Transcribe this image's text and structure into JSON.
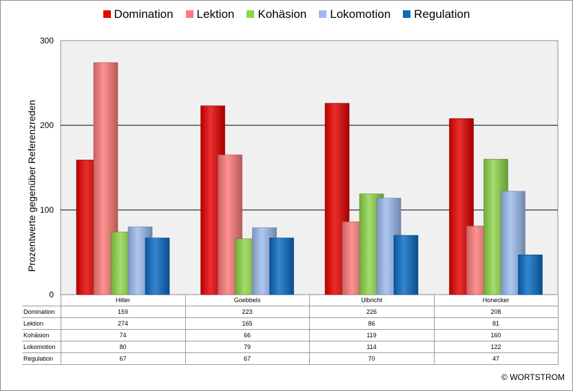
{
  "legend_order": [
    "Domination",
    "Lektion",
    "Kohäsion",
    "Lokomotion",
    "Regulation"
  ],
  "copyright": "© WORTSTROM",
  "chart_data": {
    "type": "bar",
    "ylabel": "Prozentwerte  gegenüber Referenzreden",
    "xlabel": "",
    "ylim": [
      0,
      300
    ],
    "yticks": [
      "0",
      "100",
      "200",
      "300"
    ],
    "grid": true,
    "legend_position": "top",
    "categories": [
      "Hitler",
      "Goebbels",
      "Ulbricht",
      "Honecker"
    ],
    "series": [
      {
        "name": "Domination",
        "color": "#e60000",
        "values": [
          159,
          223,
          226,
          208
        ],
        "labels": [
          "159",
          "223",
          "226",
          "208"
        ]
      },
      {
        "name": "Lektion",
        "color": "#ff7a7a",
        "values": [
          274,
          165,
          86,
          81
        ],
        "labels": [
          "274",
          "165",
          "86",
          "81"
        ]
      },
      {
        "name": "Kohäsion",
        "color": "#8fd64a",
        "values": [
          74,
          66,
          119,
          160
        ],
        "labels": [
          "74",
          "66",
          "119",
          "160"
        ]
      },
      {
        "name": "Lokomotion",
        "color": "#9cbcee",
        "values": [
          80,
          79,
          114,
          122
        ],
        "labels": [
          "80",
          "79",
          "114",
          "122"
        ]
      },
      {
        "name": "Regulation",
        "color": "#0a6cc4",
        "values": [
          67,
          67,
          70,
          47
        ],
        "labels": [
          "67",
          "67",
          "70",
          "47"
        ]
      }
    ]
  }
}
